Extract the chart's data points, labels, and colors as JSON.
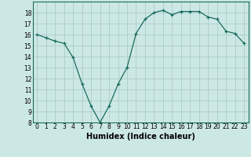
{
  "x": [
    0,
    1,
    2,
    3,
    4,
    5,
    6,
    7,
    8,
    9,
    10,
    11,
    12,
    13,
    14,
    15,
    16,
    17,
    18,
    19,
    20,
    21,
    22,
    23
  ],
  "y": [
    16.0,
    15.7,
    15.4,
    15.2,
    13.9,
    11.5,
    9.5,
    8.0,
    9.5,
    11.5,
    13.0,
    16.1,
    17.4,
    18.0,
    18.2,
    17.8,
    18.1,
    18.1,
    18.1,
    17.6,
    17.4,
    16.3,
    16.1,
    15.2
  ],
  "xlabel": "Humidex (Indice chaleur)",
  "ylim": [
    8,
    19
  ],
  "xlim": [
    -0.5,
    23.5
  ],
  "yticks": [
    8,
    9,
    10,
    11,
    12,
    13,
    14,
    15,
    16,
    17,
    18
  ],
  "xticks": [
    0,
    1,
    2,
    3,
    4,
    5,
    6,
    7,
    8,
    9,
    10,
    11,
    12,
    13,
    14,
    15,
    16,
    17,
    18,
    19,
    20,
    21,
    22,
    23
  ],
  "line_color": "#1a6b5e",
  "marker": "+",
  "bg_color": "#cce8e4",
  "grid_color": "#aacccc",
  "tick_label_fontsize": 5.5,
  "xlabel_fontsize": 7.0
}
